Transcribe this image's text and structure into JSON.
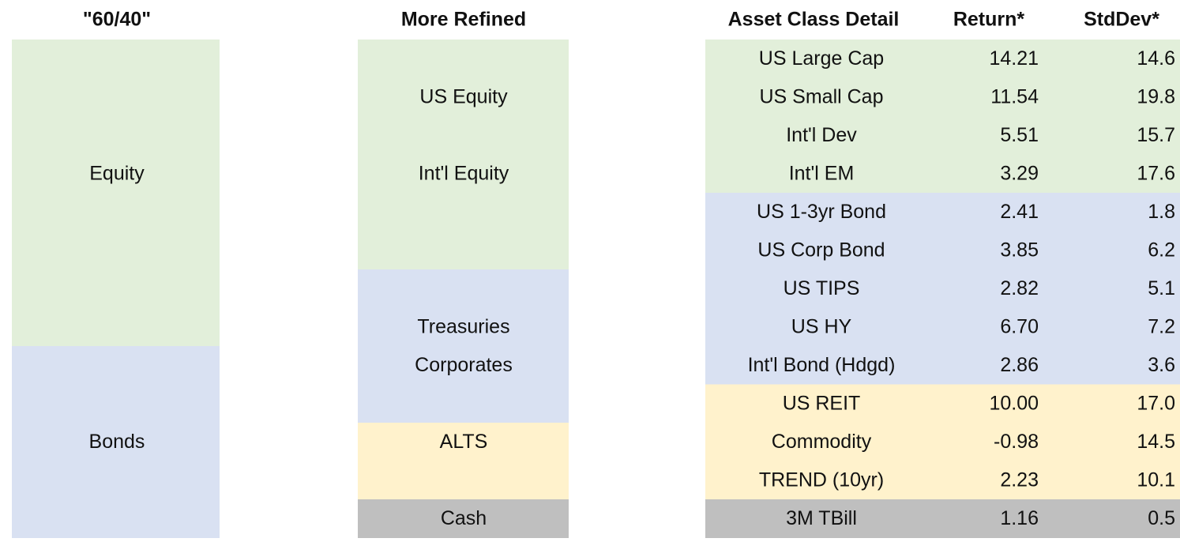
{
  "header": {
    "sixty_forty": "\"60/40\"",
    "more_refined": "More Refined",
    "detail": "Asset Class Detail",
    "return": "Return*",
    "stddev": "StdDev*"
  },
  "sixty_forty": [
    "Equity",
    "Bonds"
  ],
  "more_refined": {
    "equity": [
      "US Equity",
      "Int'l Equity"
    ],
    "bonds": [
      "Treasuries",
      "Corporates"
    ],
    "alts": [
      "ALTS"
    ],
    "cash": [
      "Cash"
    ]
  },
  "detail": {
    "rows": [
      [
        "US Large Cap",
        "14.21",
        "14.6"
      ],
      [
        "US Small Cap",
        "11.54",
        "19.8"
      ],
      [
        "Int'l Dev",
        "5.51",
        "15.7"
      ],
      [
        "Int'l EM",
        "3.29",
        "17.6"
      ],
      [
        "US 1-3yr Bond",
        "2.41",
        "1.8"
      ],
      [
        "US Corp Bond",
        "3.85",
        "6.2"
      ],
      [
        "US TIPS",
        "2.82",
        "5.1"
      ],
      [
        "US HY",
        "6.70",
        "7.2"
      ],
      [
        "Int'l Bond (Hdgd)",
        "2.86",
        "3.6"
      ],
      [
        "US REIT",
        "10.00",
        "17.0"
      ],
      [
        "Commodity",
        "-0.98",
        "14.5"
      ],
      [
        "TREND (10yr)",
        "2.23",
        "10.1"
      ],
      [
        "3M TBill",
        "1.16",
        "0.5"
      ]
    ]
  }
}
